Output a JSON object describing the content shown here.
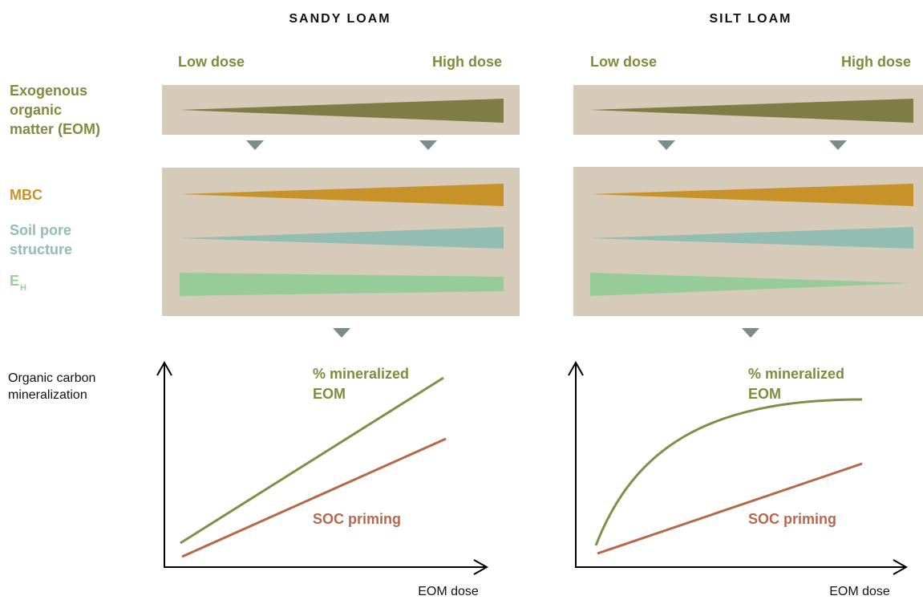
{
  "panels": [
    {
      "title": "SANDY LOAM",
      "low_dose": "Low dose",
      "high_dose": "High dose",
      "line_labels": {
        "mineralized": [
          "% mineralized",
          "EOM"
        ],
        "priming": "SOC priming"
      },
      "x_axis_label": "EOM dose"
    },
    {
      "title": "SILT LOAM",
      "low_dose": "Low dose",
      "high_dose": "High dose",
      "line_labels": {
        "mineralized": [
          "% mineralized",
          "EOM"
        ],
        "priming": "SOC priming"
      },
      "x_axis_label": "EOM dose"
    }
  ],
  "row_labels": {
    "eom": [
      "Exogenous",
      "organic",
      "matter (EOM)"
    ],
    "mbc": "MBC",
    "pore": [
      "Soil pore",
      "structure"
    ],
    "eh": {
      "main": "E",
      "sub": "H"
    }
  },
  "y_axis_label": [
    "Organic carbon",
    "mineralization"
  ]
}
